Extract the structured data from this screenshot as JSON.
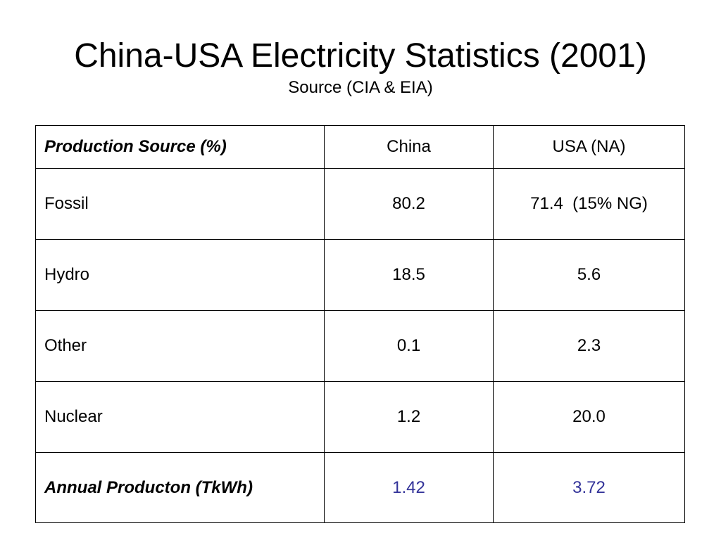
{
  "slide": {
    "title": "China-USA Electricity Statistics (2001)",
    "subtitle": "Source (CIA & EIA)"
  },
  "table": {
    "headers": [
      "Production Source (%)",
      "China",
      "USA (NA)"
    ],
    "rows": [
      {
        "label": "Fossil",
        "china": "80.2",
        "usa": "71.4  (15% NG)"
      },
      {
        "label": "Hydro",
        "china": "18.5",
        "usa": "5.6"
      },
      {
        "label": "Other",
        "china": "0.1",
        "usa": "2.3"
      },
      {
        "label": "Nuclear",
        "china": "1.2",
        "usa": "20.0"
      }
    ],
    "total": {
      "label": "Annual Producton (TkWh)",
      "china": "1.42",
      "usa": "3.72"
    },
    "colors": {
      "accent": "#333399"
    }
  }
}
